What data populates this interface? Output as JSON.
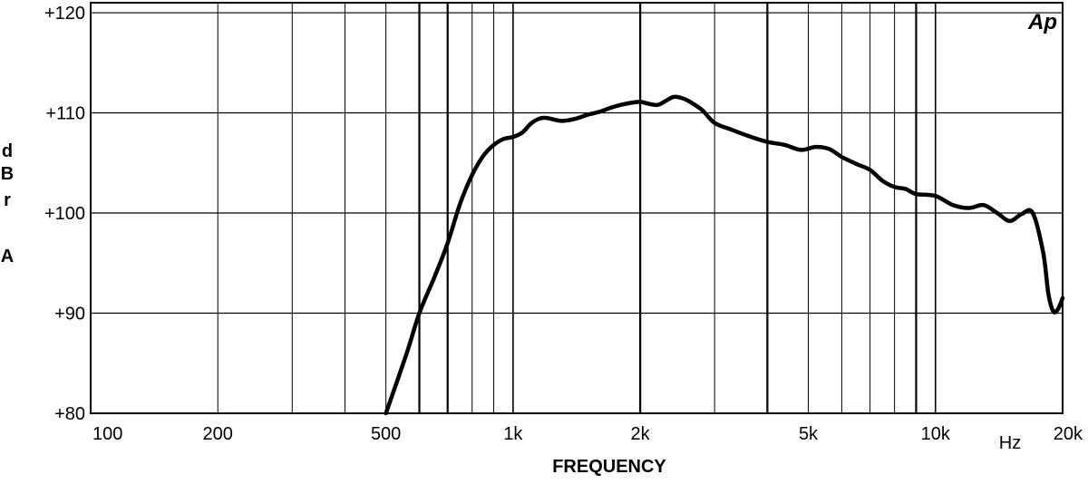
{
  "chart_data": {
    "type": "line",
    "logo": "Ap",
    "xlabel": "FREQUENCY",
    "x_unit": "Hz",
    "ylabel": [
      "d",
      "B",
      "r",
      "A"
    ],
    "x_scale": "log",
    "xlim": [
      100,
      20000
    ],
    "ylim": [
      80,
      121
    ],
    "grid": true,
    "x_ticks": [
      {
        "value": 100,
        "label": "100"
      },
      {
        "value": 200,
        "label": "200"
      },
      {
        "value": 500,
        "label": "500"
      },
      {
        "value": 1000,
        "label": "1k"
      },
      {
        "value": 2000,
        "label": "2k"
      },
      {
        "value": 5000,
        "label": "5k"
      },
      {
        "value": 10000,
        "label": "10k"
      },
      {
        "value": 20000,
        "label": "20k"
      }
    ],
    "y_ticks": [
      {
        "value": 80,
        "label": "+80"
      },
      {
        "value": 90,
        "label": "+90"
      },
      {
        "value": 100,
        "label": "+100"
      },
      {
        "value": 110,
        "label": "+110"
      },
      {
        "value": 120,
        "label": "+120"
      }
    ],
    "series": [
      {
        "x": [
          500,
          560,
          600,
          650,
          700,
          750,
          800,
          850,
          900,
          950,
          1000,
          1050,
          1100,
          1150,
          1200,
          1300,
          1400,
          1500,
          1600,
          1700,
          1800,
          1900,
          2000,
          2100,
          2200,
          2300,
          2400,
          2500,
          2600,
          2800,
          3000,
          3300,
          3600,
          4000,
          4400,
          4800,
          5200,
          5600,
          6000,
          6500,
          7000,
          7500,
          8000,
          8500,
          9000,
          10000,
          11000,
          12000,
          13000,
          14000,
          15000,
          16000,
          17000,
          18000,
          18500,
          19000,
          19500,
          20000
        ],
        "y": [
          80.0,
          86.0,
          90.0,
          93.5,
          97.0,
          101.0,
          103.8,
          105.7,
          106.8,
          107.4,
          107.6,
          108.0,
          108.9,
          109.4,
          109.5,
          109.2,
          109.4,
          109.8,
          110.1,
          110.5,
          110.8,
          111.0,
          111.1,
          110.9,
          110.8,
          111.2,
          111.6,
          111.5,
          111.2,
          110.3,
          109.0,
          108.3,
          107.7,
          107.1,
          106.8,
          106.3,
          106.6,
          106.4,
          105.6,
          104.9,
          104.3,
          103.2,
          102.6,
          102.4,
          101.9,
          101.7,
          100.8,
          100.5,
          100.8,
          100.0,
          99.2,
          99.9,
          100.0,
          96.0,
          92.0,
          90.2,
          90.4,
          91.5
        ]
      }
    ]
  }
}
